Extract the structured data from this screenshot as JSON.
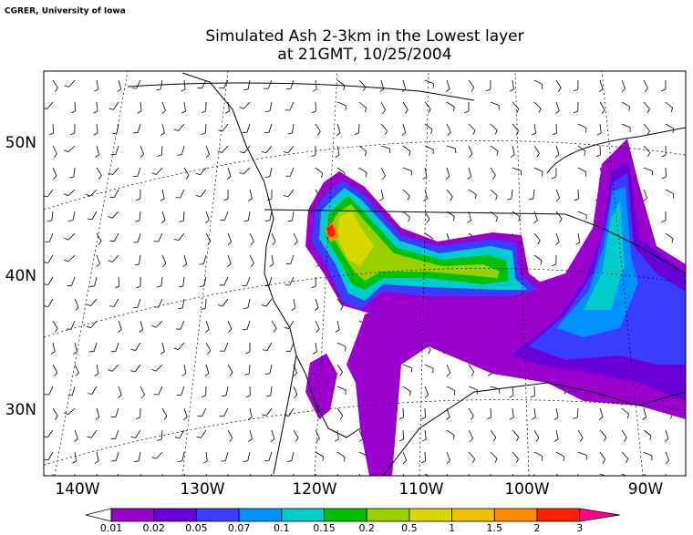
{
  "map": {
    "credit": "CGRER, University of Iowa",
    "title": "Simulated Ash 2-3km in the Lowest layer",
    "subtitle": "at 21GMT, 10/25/2004",
    "lat_labels": [
      "50N",
      "40N",
      "30N"
    ],
    "lon_labels": [
      "140W",
      "130W",
      "120W",
      "110W",
      "100W",
      "90W"
    ],
    "colorbar": {
      "labels": [
        0.01,
        0.02,
        0.05,
        0.07,
        0.1,
        0.15,
        0.2,
        0.5,
        1,
        1.5,
        2,
        3
      ],
      "colors": [
        "#ffffff",
        "#9a00cc",
        "#6a00d8",
        "#3a3cff",
        "#0090ff",
        "#00cccc",
        "#00c000",
        "#99d000",
        "#d8d800",
        "#f0c000",
        "#ff8c00",
        "#ff2000",
        "#ff0090"
      ]
    }
  }
}
